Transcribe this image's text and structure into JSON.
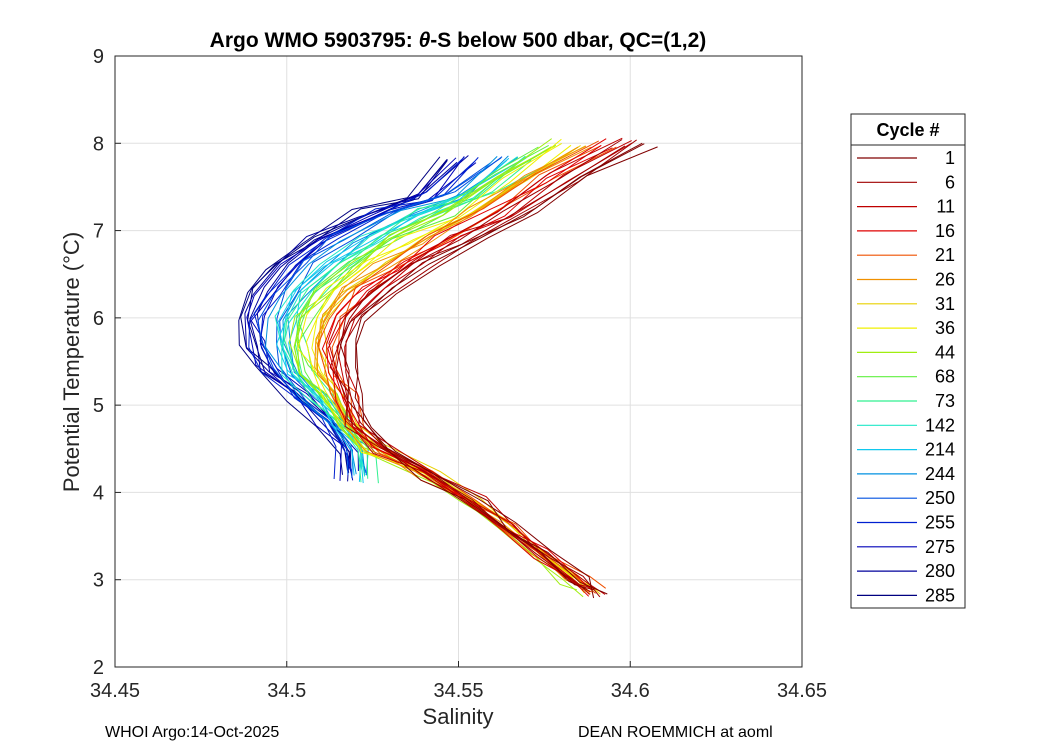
{
  "chart_data": {
    "type": "line",
    "title_parts": {
      "prefix": "Argo WMO 5903795: ",
      "theta": "θ",
      "suffix": "-S below 500 dbar,  QC=(1,2)"
    },
    "xlabel": "Salinity",
    "ylabel": "Potential Temperature (°C)",
    "xlim": [
      34.45,
      34.65
    ],
    "ylim": [
      2,
      9
    ],
    "xticks": [
      "34.45",
      "34.5",
      "34.55",
      "34.6",
      "34.65"
    ],
    "yticks": [
      "2",
      "3",
      "4",
      "5",
      "6",
      "7",
      "8",
      "9"
    ],
    "grid": true,
    "legend_title": "Cycle #",
    "legend_position": "right",
    "series": [
      {
        "name": "1",
        "color": "#800000"
      },
      {
        "name": "6",
        "color": "#9f0000"
      },
      {
        "name": "11",
        "color": "#bf0000"
      },
      {
        "name": "16",
        "color": "#df0000"
      },
      {
        "name": "21",
        "color": "#ef5000"
      },
      {
        "name": "26",
        "color": "#f09000"
      },
      {
        "name": "31",
        "color": "#e8d000"
      },
      {
        "name": "36",
        "color": "#f0f000"
      },
      {
        "name": "44",
        "color": "#a0ee10"
      },
      {
        "name": "68",
        "color": "#60f040"
      },
      {
        "name": "73",
        "color": "#30f090"
      },
      {
        "name": "142",
        "color": "#20e8c8"
      },
      {
        "name": "214",
        "color": "#10c8ee"
      },
      {
        "name": "244",
        "color": "#0090e0"
      },
      {
        "name": "250",
        "color": "#0050e0"
      },
      {
        "name": "255",
        "color": "#0020d0"
      },
      {
        "name": "275",
        "color": "#0000b8"
      },
      {
        "name": "280",
        "color": "#00009c"
      },
      {
        "name": "285",
        "color": "#000080"
      }
    ],
    "profile_shape": {
      "theta": [
        8.0,
        7.6,
        7.2,
        6.9,
        6.6,
        6.3,
        6.0,
        5.7,
        5.4,
        5.1,
        4.8,
        4.5,
        4.2,
        3.9,
        3.6,
        3.3,
        3.0,
        2.85
      ],
      "salinity_warm_end": [
        34.605,
        34.585,
        34.57,
        34.555,
        34.542,
        34.53,
        34.522,
        34.518,
        34.518,
        34.52,
        34.522,
        34.53,
        34.542,
        34.555,
        34.565,
        34.575,
        34.585,
        34.59
      ],
      "salinity_fresh_mid": [
        34.54,
        34.53,
        34.515,
        34.5,
        34.49,
        34.485,
        34.483,
        34.485,
        34.49,
        34.5,
        34.51,
        34.515,
        34.52
      ]
    }
  },
  "footer": {
    "left": "WHOI Argo:14-Oct-2025",
    "right": "DEAN ROEMMICH at aoml"
  }
}
